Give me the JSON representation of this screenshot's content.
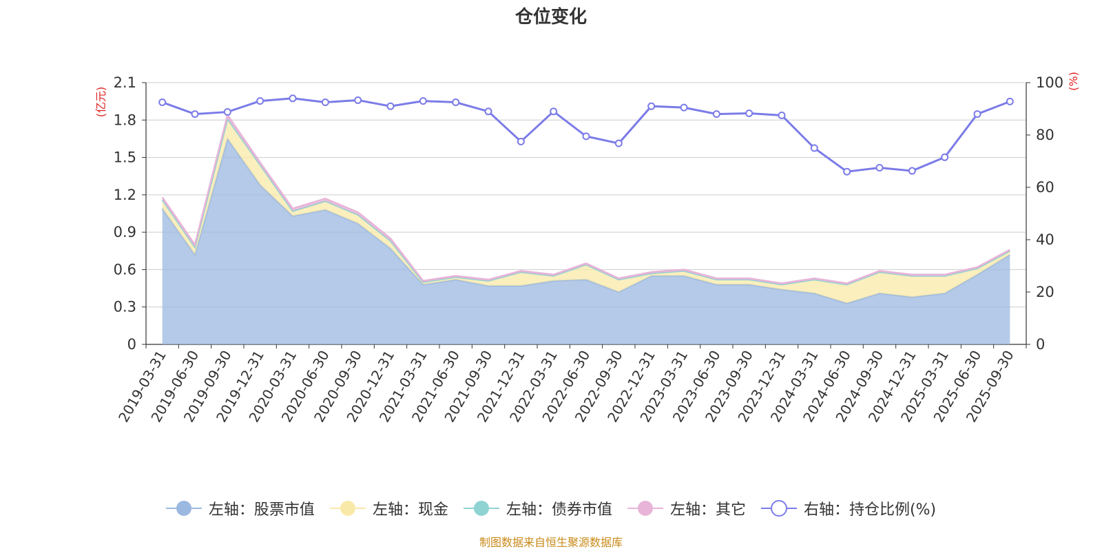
{
  "chart_data": {
    "type": "area",
    "title": "仓位变化",
    "source_note": "制图数据来自恒生聚源数据库",
    "left_axis_label": "(亿元)",
    "right_axis_label": "(%)",
    "left_ylim": [
      0,
      2.1
    ],
    "left_ticks": [
      "0",
      "0.3",
      "0.6",
      "0.9",
      "1.2",
      "1.5",
      "1.8",
      "2.1"
    ],
    "right_ylim": [
      0,
      100
    ],
    "right_ticks": [
      "0",
      "20",
      "40",
      "60",
      "80",
      "100"
    ],
    "categories": [
      "2019-03-31",
      "2019-06-30",
      "2019-09-30",
      "2019-12-31",
      "2020-03-31",
      "2020-06-30",
      "2020-09-30",
      "2020-12-31",
      "2021-03-31",
      "2021-06-30",
      "2021-09-30",
      "2021-12-31",
      "2022-03-31",
      "2022-06-30",
      "2022-09-30",
      "2022-12-31",
      "2023-03-31",
      "2023-06-30",
      "2023-09-30",
      "2023-12-31",
      "2024-03-31",
      "2024-06-30",
      "2024-09-30",
      "2024-12-31",
      "2025-03-31",
      "2025-06-30",
      "2025-09-30"
    ],
    "series": [
      {
        "name": "左轴：股票市值",
        "axis": "left",
        "type": "area",
        "color": "#9bb8e0",
        "values": [
          1.09,
          0.72,
          1.65,
          1.28,
          1.03,
          1.08,
          0.97,
          0.77,
          0.48,
          0.52,
          0.47,
          0.47,
          0.51,
          0.52,
          0.42,
          0.55,
          0.55,
          0.48,
          0.48,
          0.44,
          0.41,
          0.33,
          0.41,
          0.38,
          0.41,
          0.56,
          0.72
        ]
      },
      {
        "name": "左轴：现金",
        "axis": "left",
        "type": "area",
        "color": "#f9e9a8",
        "values": [
          0.07,
          0.06,
          0.16,
          0.16,
          0.04,
          0.07,
          0.07,
          0.06,
          0.02,
          0.02,
          0.04,
          0.11,
          0.04,
          0.12,
          0.1,
          0.02,
          0.04,
          0.04,
          0.04,
          0.04,
          0.11,
          0.15,
          0.17,
          0.17,
          0.14,
          0.05,
          0.03
        ]
      },
      {
        "name": "左轴：债券市值",
        "axis": "left",
        "type": "area",
        "color": "#8fd3d3",
        "values": [
          0,
          0,
          0,
          0,
          0,
          0,
          0,
          0,
          0,
          0,
          0,
          0,
          0,
          0,
          0,
          0,
          0,
          0,
          0,
          0,
          0,
          0,
          0,
          0,
          0,
          0,
          0
        ]
      },
      {
        "name": "左轴：其它",
        "axis": "left",
        "type": "area",
        "color": "#e8b4d8",
        "values": [
          0.02,
          0.02,
          0.03,
          0.02,
          0.02,
          0.02,
          0.02,
          0.02,
          0.01,
          0.01,
          0.01,
          0.01,
          0.01,
          0.01,
          0.01,
          0.01,
          0.01,
          0.01,
          0.01,
          0.01,
          0.01,
          0.01,
          0.01,
          0.01,
          0.01,
          0.01,
          0.01
        ]
      },
      {
        "name": "右轴：持仓比例(%)",
        "axis": "right",
        "type": "line",
        "color": "#7b7be8",
        "values": [
          92.5,
          88.0,
          88.8,
          93.0,
          94.0,
          92.5,
          93.3,
          91.0,
          93.0,
          92.5,
          89.0,
          77.5,
          89.0,
          79.5,
          76.8,
          91.0,
          90.5,
          88.0,
          88.3,
          87.5,
          75.0,
          66.0,
          67.5,
          66.3,
          71.5,
          88.0,
          92.8
        ]
      }
    ]
  }
}
